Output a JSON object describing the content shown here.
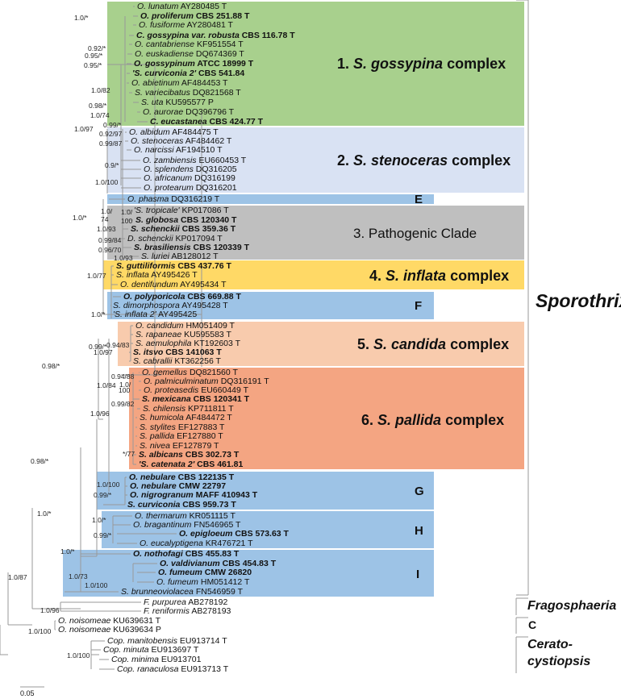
{
  "colors": {
    "gossypina": "#a8d08d",
    "stenoceras": "#d9e2f3",
    "blue": "#9dc3e6",
    "pathogenic": "#bfbfbf",
    "inflata": "#ffd966",
    "candida": "#f8cbad",
    "pallida": "#f4a582",
    "branch": "#999999"
  },
  "taxa": [
    {
      "name": "O. lunatum",
      "acc": "AY280485 T",
      "bold": false
    },
    {
      "name": "O. proliferum",
      "acc": "CBS 251.88 T",
      "bold": true
    },
    {
      "name": "O. fusiforme",
      "acc": "AY280481 T",
      "bold": false
    },
    {
      "name": "C. gossypina var. robusta",
      "acc": "CBS 116.78 T",
      "bold": true
    },
    {
      "name": "O. cantabriense",
      "acc": "KF951554 T",
      "bold": false
    },
    {
      "name": "O. euskadiense",
      "acc": "DQ674369 T",
      "bold": false
    },
    {
      "name": "O. gossypinum",
      "acc": "ATCC 18999 T",
      "bold": true
    },
    {
      "name": "'S. curviconia 2'",
      "acc": "CBS 541.84",
      "bold": true
    },
    {
      "name": "O. abietinum",
      "acc": "AF484453 T",
      "bold": false
    },
    {
      "name": "S. variecibatus",
      "acc": "DQ821568 T",
      "bold": false
    },
    {
      "name": "S. uta",
      "acc": "KU595577 P",
      "bold": false
    },
    {
      "name": "O. aurorae",
      "acc": "DQ396796 T",
      "bold": false
    },
    {
      "name": "C. eucastanea",
      "acc": "CBS 424.77 T",
      "bold": true
    },
    {
      "name": "O. albidum",
      "acc": "AF484475 T",
      "bold": false
    },
    {
      "name": "O. stenoceras",
      "acc": "AF484462 T",
      "bold": false
    },
    {
      "name": "O. narcissi",
      "acc": "AF194510 T",
      "bold": false
    },
    {
      "name": "O. zambiensis",
      "acc": "EU660453 T",
      "bold": false
    },
    {
      "name": "O. splendens",
      "acc": "DQ316205",
      "bold": false
    },
    {
      "name": "O. africanum",
      "acc": "DQ316199",
      "bold": false
    },
    {
      "name": "O. protearum",
      "acc": "DQ316201",
      "bold": false
    },
    {
      "name": "O. phasma",
      "acc": "DQ316219 T",
      "bold": false
    },
    {
      "name": "'S. tropicale'",
      "acc": "KP017086 T",
      "bold": false
    },
    {
      "name": "S. globosa",
      "acc": "CBS 120340 T",
      "bold": true
    },
    {
      "name": "S. schenckii",
      "acc": "CBS 359.36 T",
      "bold": true
    },
    {
      "name": "D. schenckii",
      "acc": "KP017094 T",
      "bold": false
    },
    {
      "name": "S. brasiliensis",
      "acc": "CBS 120339 T",
      "bold": true
    },
    {
      "name": "S. luriei",
      "acc": "AB128012 T",
      "bold": false
    },
    {
      "name": "S. guttiliformis",
      "acc": "CBS 437.76 T",
      "bold": true
    },
    {
      "name": "S. inflata",
      "acc": "AY495426 T",
      "bold": false
    },
    {
      "name": "O. dentifundum",
      "acc": "AY495434 T",
      "bold": false
    },
    {
      "name": "O. polyporicola",
      "acc": "CBS 669.88 T",
      "bold": true
    },
    {
      "name": "S. dimorphospora",
      "acc": "AY495428 T",
      "bold": false
    },
    {
      "name": "'S. inflata 2'",
      "acc": "AY495425",
      "bold": false
    },
    {
      "name": "O. candidum",
      "acc": "HM051409 T",
      "bold": false
    },
    {
      "name": "S. rapaneae",
      "acc": "KU595583 T",
      "bold": false
    },
    {
      "name": "S. aemulophila",
      "acc": "KT192603 T",
      "bold": false
    },
    {
      "name": "S. itsvo",
      "acc": "CBS 141063 T",
      "bold": true
    },
    {
      "name": "S. cabrallii",
      "acc": "KT362256 T",
      "bold": false
    },
    {
      "name": "O. gemellus",
      "acc": "DQ821560 T",
      "bold": false
    },
    {
      "name": "O. palmiculminatum",
      "acc": "DQ316191 T",
      "bold": false
    },
    {
      "name": "O. proteasedis",
      "acc": "EU660449 T",
      "bold": false
    },
    {
      "name": "S. mexicana",
      "acc": "CBS 120341 T",
      "bold": true
    },
    {
      "name": "S. chilensis",
      "acc": "KP711811 T",
      "bold": false
    },
    {
      "name": "S. humicola",
      "acc": "AF484472 T",
      "bold": false
    },
    {
      "name": "S. stylites",
      "acc": "EF127883 T",
      "bold": false
    },
    {
      "name": "S. pallida",
      "acc": "EF127880 T",
      "bold": false
    },
    {
      "name": "S. nivea",
      "acc": "EF127879 T",
      "bold": false
    },
    {
      "name": "S. albicans",
      "acc": "CBS 302.73 T",
      "bold": true
    },
    {
      "name": "'S. catenata 2'",
      "acc": "CBS 461.81",
      "bold": true
    },
    {
      "name": "O. nebulare",
      "acc": "CBS 122135 T",
      "bold": true
    },
    {
      "name": "O. nebulare",
      "acc": "CMW 22797",
      "bold": true
    },
    {
      "name": "O. nigrogranum",
      "acc": "MAFF 410943 T",
      "bold": true
    },
    {
      "name": "S. curviconia",
      "acc": "CBS 959.73 T",
      "bold": true
    },
    {
      "name": "O. thermarum",
      "acc": "KR051115 T",
      "bold": false
    },
    {
      "name": "O. bragantinum",
      "acc": "FN546965 T",
      "bold": false
    },
    {
      "name": "O. epigloeum",
      "acc": "CBS 573.63 T",
      "bold": true
    },
    {
      "name": "O. eucalyptigena",
      "acc": "KR476721 T",
      "bold": false
    },
    {
      "name": "O. nothofagi",
      "acc": "CBS 455.83 T",
      "bold": true
    },
    {
      "name": "O. valdivianum",
      "acc": "CBS 454.83 T",
      "bold": true
    },
    {
      "name": "O. fumeum",
      "acc": "CMW 26820",
      "bold": true
    },
    {
      "name": "O. fumeum",
      "acc": "HM051412 T",
      "bold": false
    },
    {
      "name": "S. brunneoviolacea",
      "acc": "FN546959 T",
      "bold": false
    },
    {
      "name": "F. purpurea",
      "acc": "AB278192",
      "bold": false
    },
    {
      "name": "F. reniformis",
      "acc": "AB278193",
      "bold": false
    },
    {
      "name": "O. noisomeae",
      "acc": "KU639631 T",
      "bold": false
    },
    {
      "name": "O. noisomeae",
      "acc": "KU639634 P",
      "bold": false
    },
    {
      "name": "Cop. manitobensis",
      "acc": "EU913714 T",
      "bold": false
    },
    {
      "name": "Cop. minuta",
      "acc": "EU913697 T",
      "bold": false
    },
    {
      "name": "Cop. minima",
      "acc": "EU913701",
      "bold": false
    },
    {
      "name": "Cop. ranaculosa",
      "acc": "EU913713 T",
      "bold": false
    }
  ],
  "supports": [
    "1.0/*",
    "0.92/*",
    "0.95/*",
    "0.95/*",
    "1.0/82",
    "0.98/*",
    "1.0/74",
    "0.99/*",
    "1.0/97",
    "0.92/97",
    "0.99/87",
    "0.9/*",
    "1.0/100",
    "1.0/",
    "74",
    "1.0/",
    "100",
    "1.0/93",
    "0.99/84",
    "0.96/70",
    "1.0/93",
    "1.0/*",
    "1.0/77",
    "1.0/*",
    "0.99/*",
    "0.94/83",
    "1.0/97",
    "0.98/*",
    "1.0/84",
    "0.94/88",
    "1.0/",
    "100",
    "0.99/82",
    "1.0/96",
    "*/77",
    "0.98/*",
    "1.0/100",
    "0.99/*",
    "1.0/*",
    "0.99/*",
    "1.0/*",
    "1.0/*",
    "1.0/73",
    "1.0/100",
    "1.0/87",
    "1.0/96",
    "1.0/100",
    "1.0/100"
  ],
  "clades": {
    "c1": {
      "num": "1.",
      "genus": "S. gossypina",
      "rest": "complex"
    },
    "c2": {
      "num": "2.",
      "genus": "S. stenoceras",
      "rest": "complex"
    },
    "c3": {
      "label": "3. Pathogenic Clade"
    },
    "c4": {
      "num": "4.",
      "genus": "S. inflata",
      "rest": "complex"
    },
    "c5": {
      "num": "5.",
      "genus": "S. candida",
      "rest": "complex"
    },
    "c6": {
      "num": "6.",
      "genus": "S. pallida",
      "rest": "complex"
    },
    "letters": [
      "E",
      "F",
      "G",
      "H",
      "I"
    ]
  },
  "groups": {
    "sporothrix": "Sporothrix",
    "fragosphaeria": "Fragosphaeria",
    "c": "C",
    "cerato1": "Cerato-",
    "cerato2": "cystiopsis"
  },
  "scale": "0.05"
}
